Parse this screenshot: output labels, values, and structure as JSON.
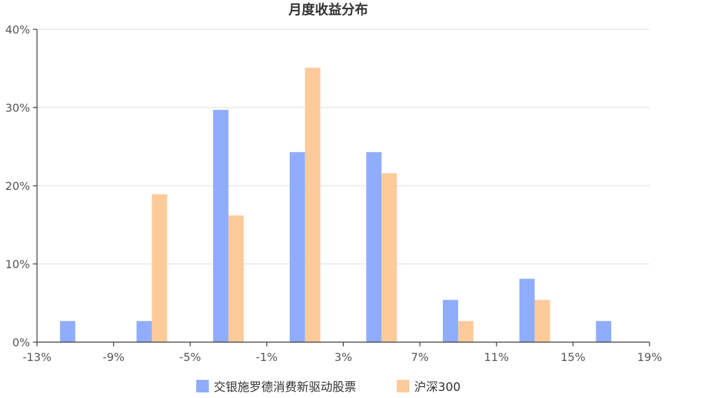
{
  "chart_data": {
    "type": "bar",
    "title": "月度收益分布",
    "x_tick_labels": [
      "-13%",
      "-9%",
      "-5%",
      "-1%",
      "3%",
      "7%",
      "11%",
      "15%",
      "19%"
    ],
    "y_tick_labels": [
      "0%",
      "10%",
      "20%",
      "30%",
      "40%"
    ],
    "ylim": [
      0,
      40
    ],
    "bin_edges": [
      -13,
      -9,
      -5,
      -1,
      3,
      7,
      11,
      15,
      19
    ],
    "bin_centers": [
      -11,
      -7,
      -3,
      1,
      5,
      9,
      13,
      17
    ],
    "grid": true,
    "legend_position": "bottom",
    "series": [
      {
        "name": "交银施罗德消费新驱动股票",
        "color": "#8fadfc",
        "values": [
          2.7,
          2.7,
          29.7,
          24.3,
          24.3,
          5.4,
          8.1,
          2.7
        ]
      },
      {
        "name": "沪深300",
        "color": "#fdca9a",
        "values": [
          0,
          18.9,
          16.2,
          35.1,
          21.6,
          2.7,
          5.4,
          0
        ]
      }
    ]
  }
}
